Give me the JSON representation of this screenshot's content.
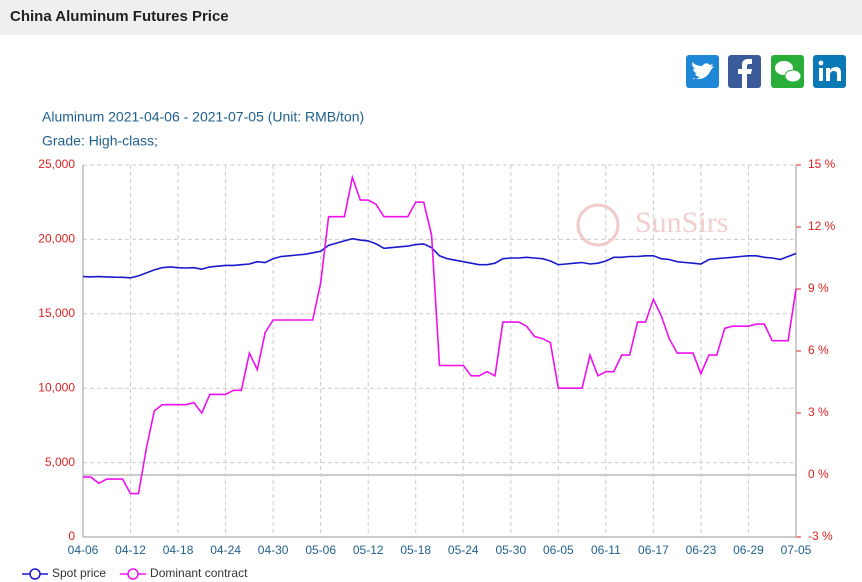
{
  "header": {
    "title": "China Aluminum Futures Price"
  },
  "chart_data": {
    "type": "line",
    "title": "Aluminum 2021-04-06 - 2021-07-05 (Unit: RMB/ton)",
    "subtitle": "Grade: High-class;",
    "watermark": "SunSirs",
    "categories": [
      "04-06",
      null,
      null,
      null,
      null,
      null,
      "04-12",
      null,
      null,
      null,
      null,
      null,
      "04-18",
      null,
      null,
      null,
      null,
      null,
      "04-24",
      null,
      null,
      null,
      null,
      null,
      "04-30",
      null,
      null,
      null,
      null,
      null,
      "05-06",
      null,
      null,
      null,
      null,
      null,
      "05-12",
      null,
      null,
      null,
      null,
      null,
      "05-18",
      null,
      null,
      null,
      null,
      null,
      "05-24",
      null,
      null,
      null,
      null,
      null,
      "05-30",
      null,
      null,
      null,
      null,
      null,
      "06-05",
      null,
      null,
      null,
      null,
      null,
      "06-11",
      null,
      null,
      null,
      null,
      null,
      "06-17",
      null,
      null,
      null,
      null,
      null,
      "06-23",
      null,
      null,
      null,
      null,
      null,
      "06-29",
      null,
      null,
      null,
      null,
      null,
      "07-05"
    ],
    "series": [
      {
        "name": "Spot price",
        "color": "#1a1acc",
        "values": [
          17500,
          17480,
          17500,
          17480,
          17460,
          17450,
          17420,
          17550,
          17750,
          17950,
          18100,
          18150,
          18100,
          18080,
          18100,
          18000,
          18150,
          18200,
          18250,
          18250,
          18300,
          18350,
          18500,
          18450,
          18700,
          18850,
          18900,
          18950,
          19000,
          19100,
          19200,
          19600,
          19750,
          19900,
          20050,
          19950,
          19900,
          19700,
          19400,
          19450,
          19500,
          19550,
          19650,
          19700,
          19450,
          18900,
          18700,
          18600,
          18500,
          18400,
          18300,
          18300,
          18400,
          18700,
          18750,
          18750,
          18800,
          18750,
          18700,
          18550,
          18300,
          18350,
          18400,
          18450,
          18350,
          18400,
          18550,
          18800,
          18800,
          18850,
          18850,
          18900,
          18900,
          18700,
          18650,
          18500,
          18450,
          18400,
          18350,
          18650,
          18700,
          18750,
          18800,
          18850,
          18900,
          18900,
          18800,
          18750,
          18650,
          18850,
          19050
        ]
      },
      {
        "name": "Dominant contract",
        "color": "#ee11ee",
        "axis": "y2",
        "values": [
          -0.1,
          -0.1,
          -0.4,
          -0.2,
          -0.2,
          -0.2,
          -0.9,
          -0.9,
          1.3,
          3.1,
          3.4,
          3.4,
          3.4,
          3.4,
          3.5,
          3.0,
          3.9,
          3.9,
          3.9,
          4.1,
          4.1,
          5.9,
          5.1,
          6.9,
          7.5,
          7.5,
          7.5,
          7.5,
          7.5,
          7.5,
          9.3,
          12.5,
          12.5,
          12.5,
          14.4,
          13.3,
          13.3,
          13.1,
          12.5,
          12.5,
          12.5,
          12.5,
          13.2,
          13.2,
          11.6,
          5.3,
          5.3,
          5.3,
          5.3,
          4.8,
          4.8,
          5.0,
          4.8,
          7.4,
          7.4,
          7.4,
          7.2,
          6.7,
          6.6,
          6.4,
          4.2,
          4.2,
          4.2,
          4.2,
          5.8,
          4.8,
          5.0,
          5.0,
          5.8,
          5.8,
          7.4,
          7.4,
          8.5,
          7.7,
          6.6,
          5.9,
          5.9,
          5.9,
          4.9,
          5.8,
          5.8,
          7.1,
          7.2,
          7.2,
          7.2,
          7.3,
          7.3,
          6.5,
          6.5,
          6.5,
          9.0
        ]
      }
    ],
    "ylim": [
      0,
      25000
    ],
    "yticks": [
      0,
      {
        "value": 5000,
        "label": "5,000"
      },
      {
        "value": 10000,
        "label": "10,000"
      },
      {
        "value": 15000,
        "label": "15,000"
      },
      {
        "value": 20000,
        "label": "20,000"
      },
      {
        "value": 25000,
        "label": "25,000"
      }
    ],
    "y2lim": [
      -3,
      15
    ],
    "y2ticks": [
      {
        "value": -3,
        "label": "-3 %"
      },
      {
        "value": 0,
        "label": "0 %"
      },
      {
        "value": 3,
        "label": "3 %"
      },
      {
        "value": 6,
        "label": "6 %"
      },
      {
        "value": 9,
        "label": "9 %"
      },
      {
        "value": 12,
        "label": "12 %"
      },
      {
        "value": 15,
        "label": "15 %"
      }
    ],
    "grid": true,
    "legend": "bottom-left"
  }
}
